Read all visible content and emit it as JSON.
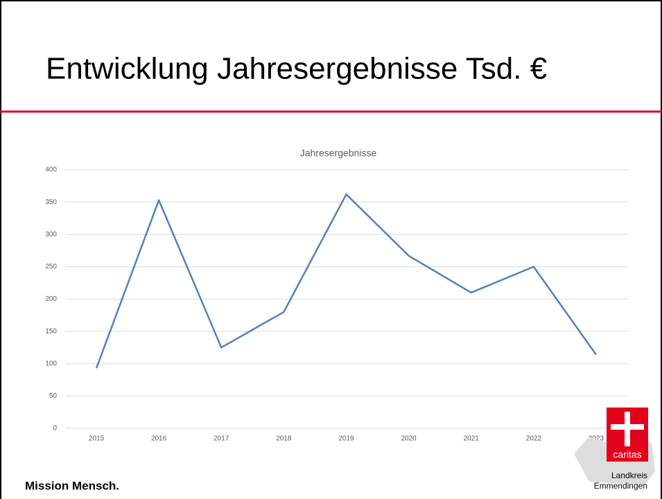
{
  "slide": {
    "title": "Entwicklung Jahresergebnisse Tsd. €",
    "footer": "Mission Mensch.",
    "logo_text": "caritas",
    "logo_lines": [
      "Landkreis",
      "Emmendingen"
    ]
  },
  "chart_data": {
    "type": "line",
    "title": "Jahresergebnisse",
    "categories": [
      "2015",
      "2016",
      "2017",
      "2018",
      "2019",
      "2020",
      "2021",
      "2022",
      "2023"
    ],
    "series": [
      {
        "name": "Jahresergebnisse",
        "color": "#4f81bd",
        "values": [
          93,
          353,
          125,
          180,
          362,
          267,
          210,
          250,
          114
        ]
      }
    ],
    "ylim": [
      0,
      400
    ],
    "yticks": [
      0,
      50,
      100,
      150,
      200,
      250,
      300,
      350,
      400
    ],
    "grid": true
  }
}
